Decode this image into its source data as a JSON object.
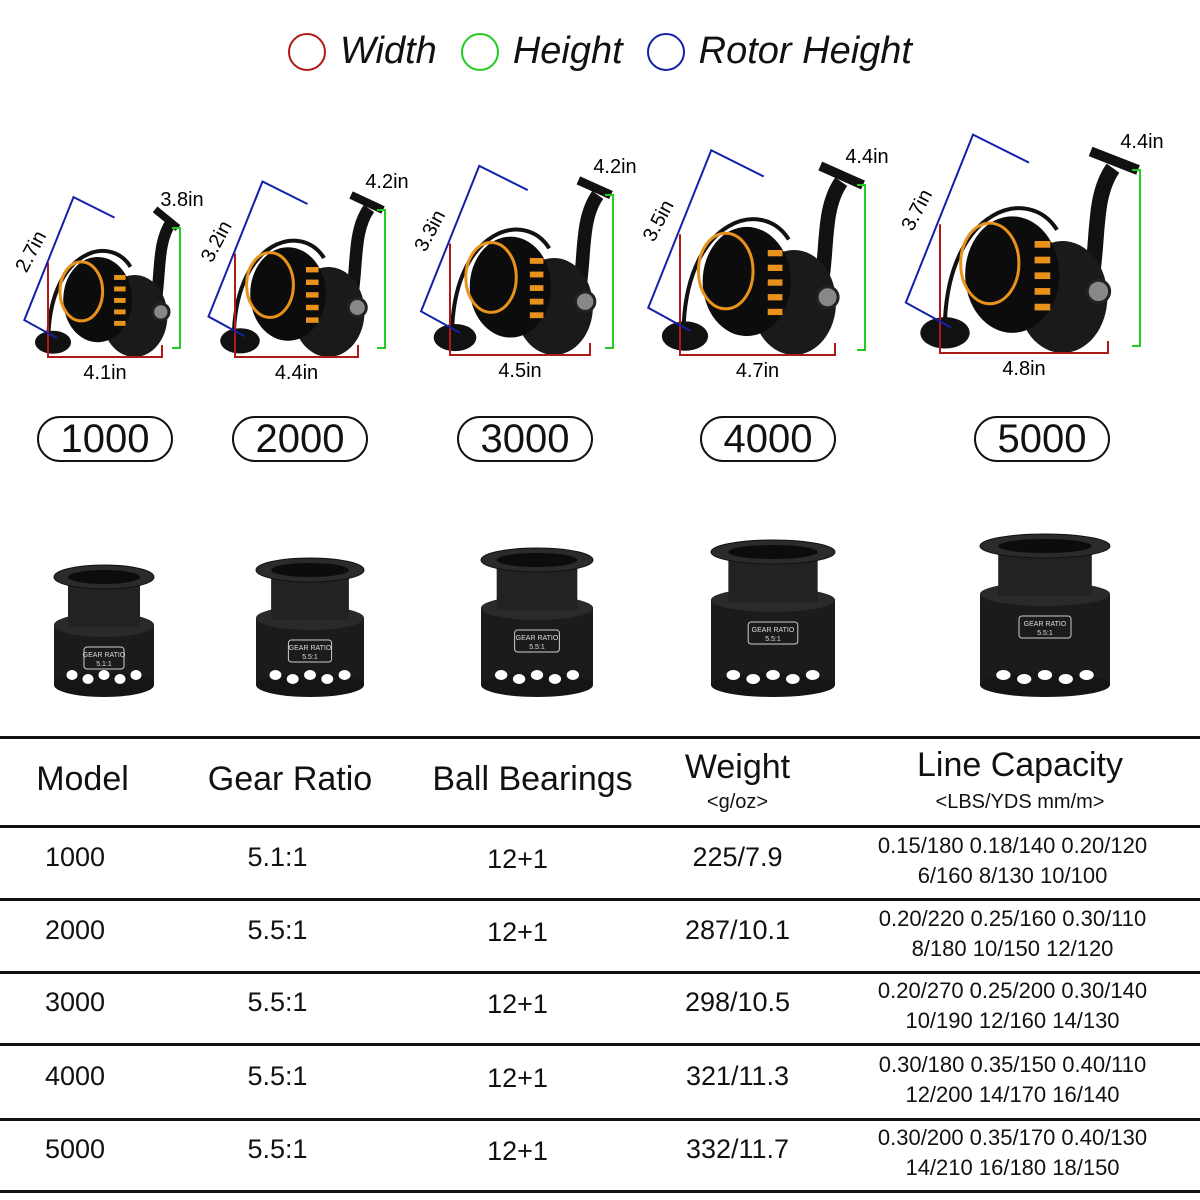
{
  "legend": [
    {
      "label": "Width",
      "color": "#b01818"
    },
    {
      "label": "Height",
      "color": "#22cc22"
    },
    {
      "label": "Rotor Height",
      "color": "#1420a8"
    }
  ],
  "colors": {
    "width": "#b01818",
    "height": "#22cc22",
    "rotor": "#1420a8",
    "accent": "#e8921c"
  },
  "reels": [
    {
      "model": "1000",
      "width": "4.1in",
      "height": "3.8in",
      "rotor": "2.7in"
    },
    {
      "model": "2000",
      "width": "4.4in",
      "height": "4.2in",
      "rotor": "3.2in"
    },
    {
      "model": "3000",
      "width": "4.5in",
      "height": "4.2in",
      "rotor": "3.3in"
    },
    {
      "model": "4000",
      "width": "4.7in",
      "height": "4.4in",
      "rotor": "3.5in"
    },
    {
      "model": "5000",
      "width": "4.8in",
      "height": "4.4in",
      "rotor": "3.7in"
    }
  ],
  "spools": [
    {
      "label": "GEAR RATIO",
      "ratio": "5.1:1"
    },
    {
      "label": "GEAR RATIO",
      "ratio": "5.5:1"
    },
    {
      "label": "GEAR RATIO",
      "ratio": "5.5:1"
    },
    {
      "label": "GEAR RATIO",
      "ratio": "5.5:1"
    },
    {
      "label": "GEAR RATIO",
      "ratio": "5.5:1"
    }
  ],
  "table": {
    "headers": {
      "model": "Model",
      "gear": "Gear Ratio",
      "bearings": "Ball Bearings",
      "weight": "Weight",
      "weight_unit": "<g/oz>",
      "line": "Line Capacity",
      "line_unit": "<LBS/YDS mm/m>"
    },
    "rows": [
      {
        "model": "1000",
        "gear": "5.1:1",
        "bearings": "12+1",
        "weight": "225/7.9",
        "line1": "0.15/180 0.18/140 0.20/120",
        "line2": "6/160 8/130 10/100"
      },
      {
        "model": "2000",
        "gear": "5.5:1",
        "bearings": "12+1",
        "weight": "287/10.1",
        "line1": "0.20/220 0.25/160 0.30/110",
        "line2": "8/180 10/150 12/120"
      },
      {
        "model": "3000",
        "gear": "5.5:1",
        "bearings": "12+1",
        "weight": "298/10.5",
        "line1": "0.20/270 0.25/200 0.30/140",
        "line2": "10/190 12/160 14/130"
      },
      {
        "model": "4000",
        "gear": "5.5:1",
        "bearings": "12+1",
        "weight": "321/11.3",
        "line1": "0.30/180 0.35/150 0.40/110",
        "line2": "12/200 14/170 16/140"
      },
      {
        "model": "5000",
        "gear": "5.5:1",
        "bearings": "12+1",
        "weight": "332/11.7",
        "line1": "0.30/200 0.35/170 0.40/130",
        "line2": "14/210 16/180 18/150"
      }
    ]
  }
}
